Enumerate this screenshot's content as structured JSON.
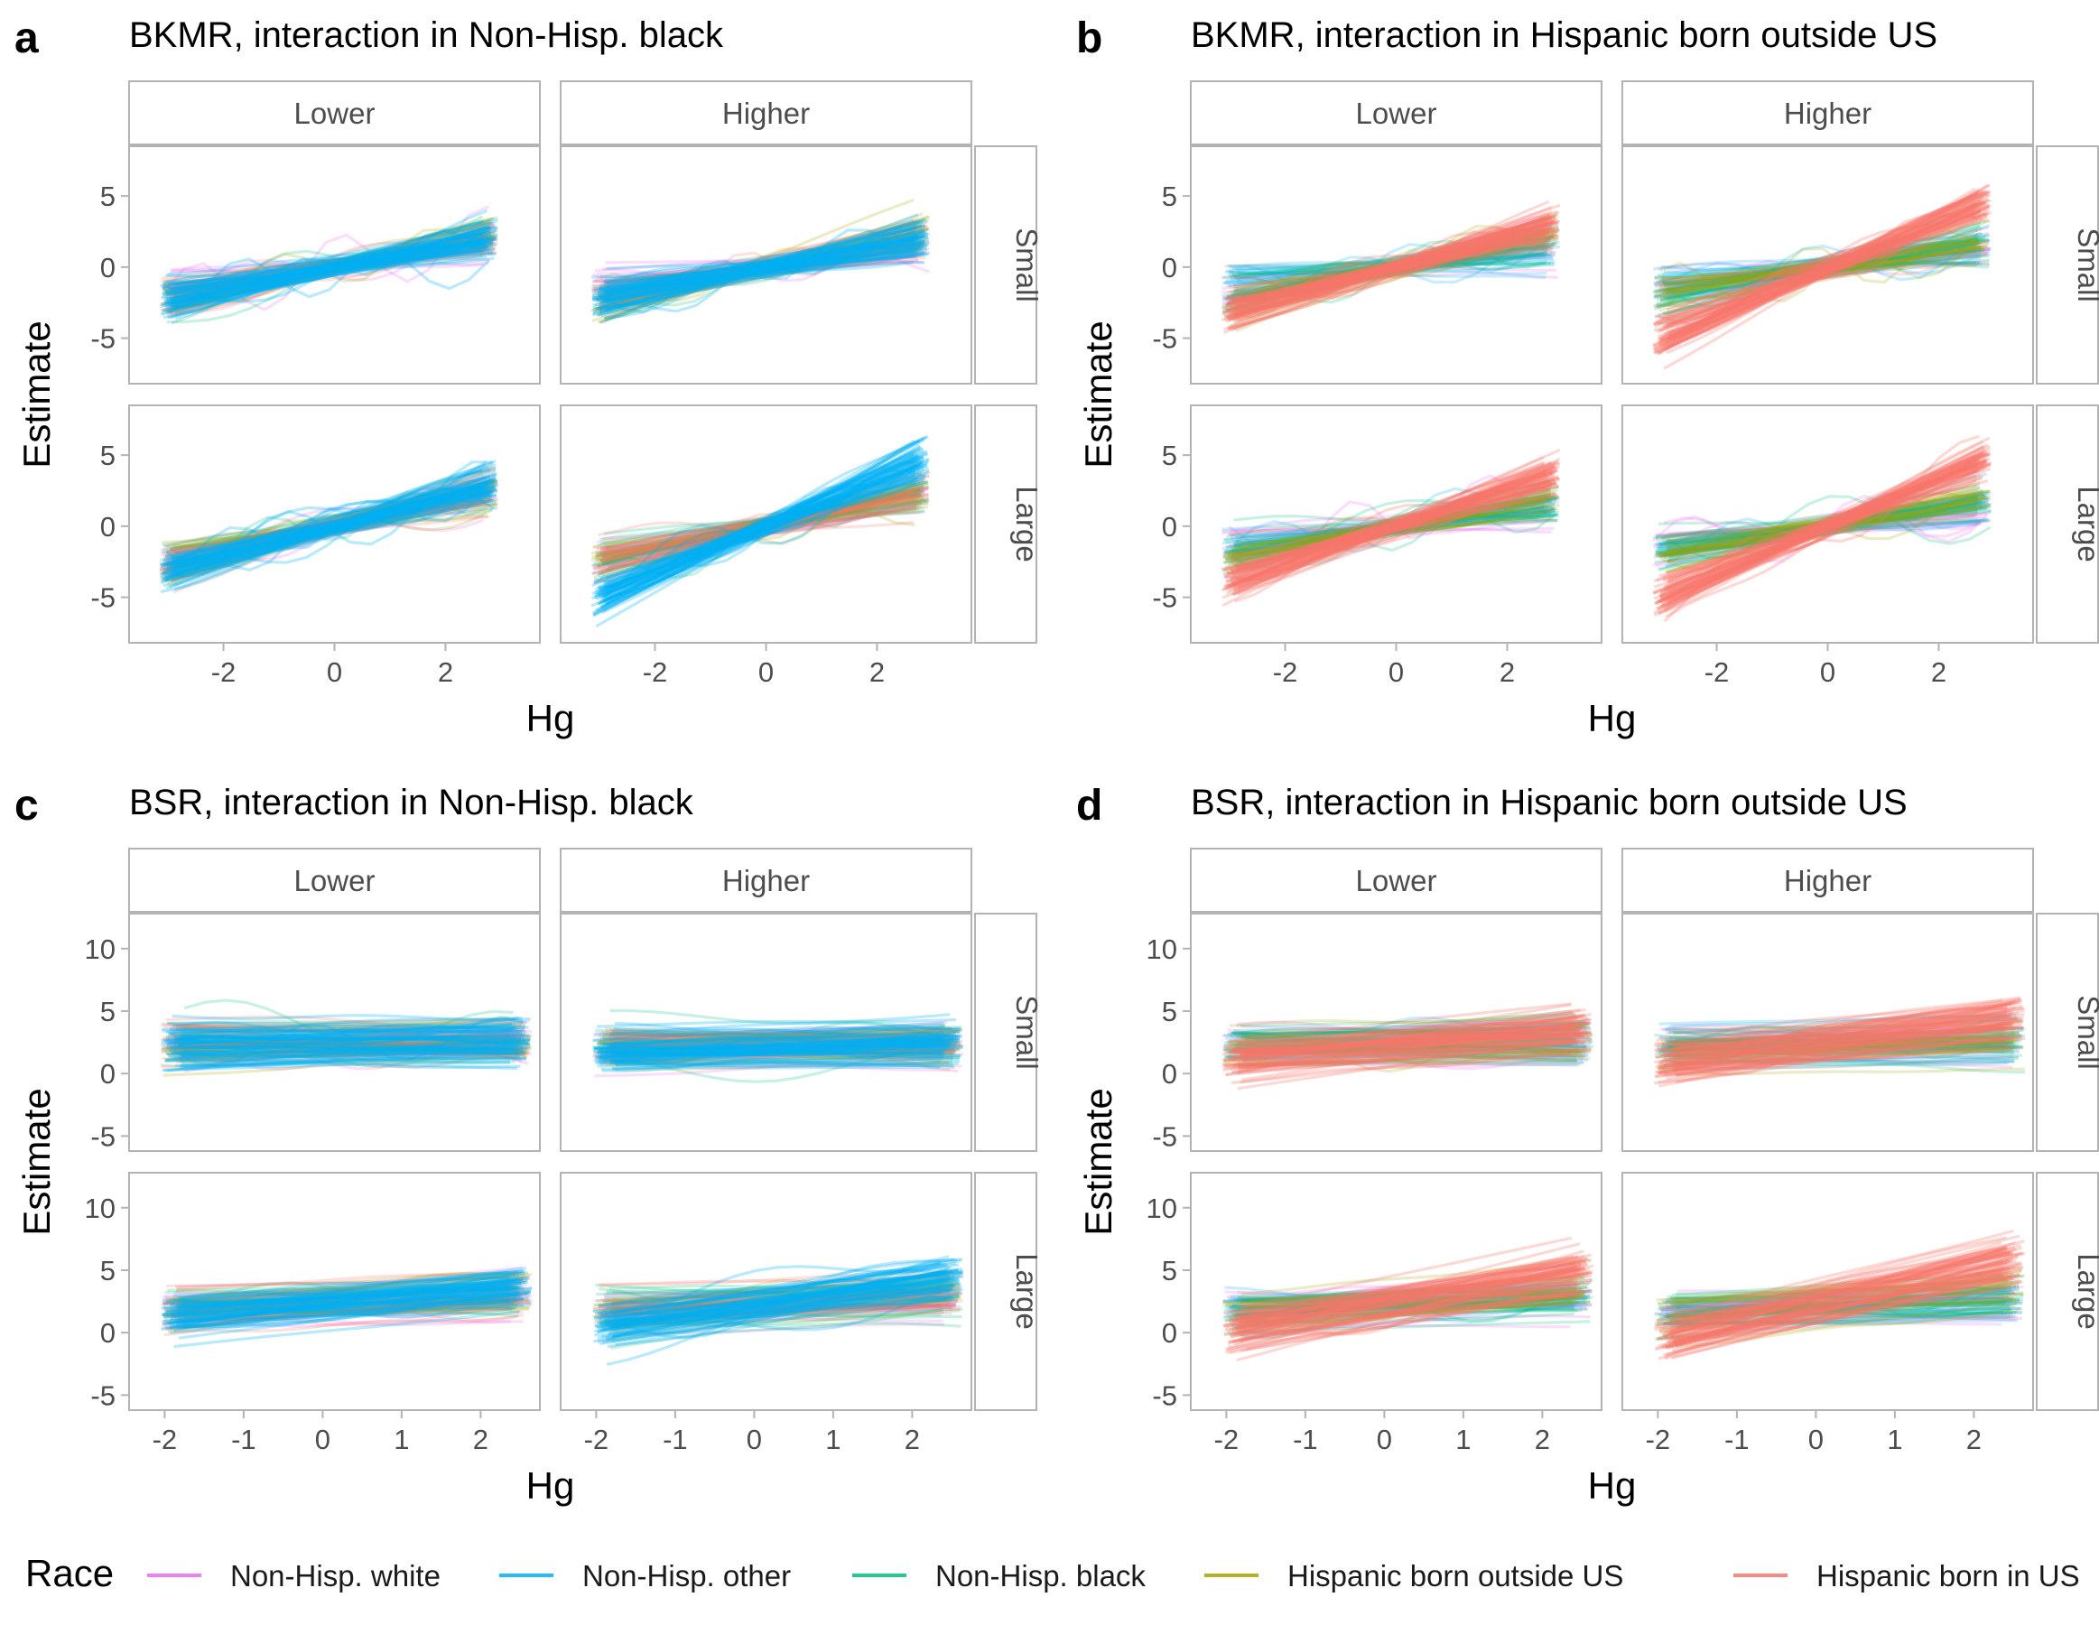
{
  "chart_data": [
    {
      "letter": "a",
      "title": "BKMR, interaction in Non-Hisp. black",
      "type": "line",
      "xlabel": "Hg",
      "ylabel": "Estimate",
      "xlim": [
        -3.7,
        3.7
      ],
      "ylim": [
        -8.2,
        8.5
      ],
      "x_ticks": [
        -2,
        0,
        2
      ],
      "x_tick_labels": [
        "-2",
        "0",
        "2"
      ],
      "y_ticks": [
        -5,
        0,
        5
      ],
      "y_tick_labels": [
        "-5",
        "0",
        "5"
      ],
      "col_strips": [
        "Lower",
        "Higher"
      ],
      "row_strips": [
        "Small",
        "Large"
      ],
      "x_range": [
        -3,
        2.8
      ],
      "panels": {
        "Lower|Small": {
          "non_hisp_white": 0.55,
          "non_hisp_other": 0.7,
          "non_hisp_black": 0.75,
          "hispanic_outside_us": 0.8,
          "hispanic_in_us": 0.7
        },
        "Higher|Small": {
          "non_hisp_white": 0.55,
          "non_hisp_other": 0.75,
          "non_hisp_black": 0.75,
          "hispanic_outside_us": 0.8,
          "hispanic_in_us": 0.7
        },
        "Lower|Large": {
          "non_hisp_white": 0.9,
          "non_hisp_other": 1.0,
          "non_hisp_black": 0.85,
          "hispanic_outside_us": 0.85,
          "hispanic_in_us": 0.9
        },
        "Higher|Large": {
          "non_hisp_white": 0.8,
          "non_hisp_other": 1.6,
          "non_hisp_black": 0.8,
          "hispanic_outside_us": 0.8,
          "hispanic_in_us": 0.8
        }
      },
      "foreground_series": "non_hisp_other"
    },
    {
      "letter": "b",
      "title": "BKMR, interaction in Hispanic born outside US",
      "type": "line",
      "xlabel": "Hg",
      "ylabel": "Estimate",
      "xlim": [
        -3.7,
        3.7
      ],
      "ylim": [
        -8.2,
        8.5
      ],
      "x_ticks": [
        -2,
        0,
        2
      ],
      "x_tick_labels": [
        "-2",
        "0",
        "2"
      ],
      "y_ticks": [
        -5,
        0,
        5
      ],
      "y_tick_labels": [
        "-5",
        "0",
        "5"
      ],
      "col_strips": [
        "Lower",
        "Higher"
      ],
      "row_strips": [
        "Small",
        "Large"
      ],
      "x_range": [
        -3,
        2.8
      ],
      "panels": {
        "Lower|Small": {
          "non_hisp_white": 0.5,
          "non_hisp_other": 0.5,
          "non_hisp_black": 0.6,
          "hispanic_outside_us": 0.9,
          "hispanic_in_us": 1.05
        },
        "Higher|Small": {
          "non_hisp_white": 0.5,
          "non_hisp_other": 0.5,
          "non_hisp_black": 0.6,
          "hispanic_outside_us": 0.6,
          "hispanic_in_us": 1.6
        },
        "Lower|Large": {
          "non_hisp_white": 0.5,
          "non_hisp_other": 0.6,
          "non_hisp_black": 0.6,
          "hispanic_outside_us": 0.7,
          "hispanic_in_us": 1.3
        },
        "Higher|Large": {
          "non_hisp_white": 0.5,
          "non_hisp_other": 0.6,
          "non_hisp_black": 0.6,
          "hispanic_outside_us": 0.7,
          "hispanic_in_us": 1.65
        }
      },
      "foreground_series": "hispanic_in_us"
    },
    {
      "letter": "c",
      "title": "BSR, interaction in Non-Hisp. black",
      "type": "line",
      "xlabel": "Hg",
      "ylabel": "Estimate",
      "xlim": [
        -2.45,
        2.75
      ],
      "ylim": [
        -6.2,
        12.8
      ],
      "x_ticks": [
        -2,
        -1,
        0,
        1,
        2
      ],
      "x_tick_labels": [
        "-2",
        "-1",
        "0",
        "1",
        "2"
      ],
      "y_ticks": [
        -5,
        0,
        5,
        10
      ],
      "y_tick_labels": [
        "-5",
        "0",
        "5",
        "10"
      ],
      "col_strips": [
        "Lower",
        "Higher"
      ],
      "row_strips": [
        "Small",
        "Large"
      ],
      "x_range": [
        -1.9,
        2.5
      ],
      "panels": {
        "Lower|Small": {
          "non_hisp_white": 0.05,
          "non_hisp_other": 0.1,
          "non_hisp_black": 0.05,
          "hispanic_outside_us": 0.1,
          "hispanic_in_us": 0.05
        },
        "Higher|Small": {
          "non_hisp_white": 0.05,
          "non_hisp_other": 0.15,
          "non_hisp_black": 0.05,
          "hispanic_outside_us": 0.1,
          "hispanic_in_us": 0.05
        },
        "Lower|Large": {
          "non_hisp_white": 0.2,
          "non_hisp_other": 0.5,
          "non_hisp_black": 0.2,
          "hispanic_outside_us": 0.4,
          "hispanic_in_us": 0.3
        },
        "Higher|Large": {
          "non_hisp_white": 0.2,
          "non_hisp_other": 0.9,
          "non_hisp_black": 0.2,
          "hispanic_outside_us": 0.5,
          "hispanic_in_us": 0.3
        }
      },
      "foreground_series": "non_hisp_other"
    },
    {
      "letter": "d",
      "title": "BSR, interaction in Hispanic born outside US",
      "type": "line",
      "xlabel": "Hg",
      "ylabel": "Estimate",
      "xlim": [
        -2.45,
        2.75
      ],
      "ylim": [
        -6.2,
        12.8
      ],
      "x_ticks": [
        -2,
        -1,
        0,
        1,
        2
      ],
      "x_tick_labels": [
        "-2",
        "-1",
        "0",
        "1",
        "2"
      ],
      "y_ticks": [
        -5,
        0,
        5,
        10
      ],
      "y_tick_labels": [
        "-5",
        "0",
        "5",
        "10"
      ],
      "col_strips": [
        "Lower",
        "Higher"
      ],
      "row_strips": [
        "Small",
        "Large"
      ],
      "x_range": [
        -1.9,
        2.5
      ],
      "panels": {
        "Lower|Small": {
          "non_hisp_white": 0.05,
          "non_hisp_other": 0.1,
          "non_hisp_black": 0.05,
          "hispanic_outside_us": 0.2,
          "hispanic_in_us": 0.55
        },
        "Higher|Small": {
          "non_hisp_white": 0.05,
          "non_hisp_other": 0.1,
          "non_hisp_black": 0.05,
          "hispanic_outside_us": 0.3,
          "hispanic_in_us": 0.85
        },
        "Lower|Large": {
          "non_hisp_white": 0.2,
          "non_hisp_other": 0.3,
          "non_hisp_black": 0.25,
          "hispanic_outside_us": 0.5,
          "hispanic_in_us": 1.1
        },
        "Higher|Large": {
          "non_hisp_white": 0.2,
          "non_hisp_other": 0.3,
          "non_hisp_black": 0.25,
          "hispanic_outside_us": 0.6,
          "hispanic_in_us": 1.4
        }
      },
      "foreground_series": "hispanic_in_us"
    }
  ],
  "series": [
    {
      "key": "non_hisp_white",
      "name": "Non-Hisp. white",
      "color": "#E76BF3"
    },
    {
      "key": "non_hisp_other",
      "name": "Non-Hisp. other",
      "color": "#00B0F6"
    },
    {
      "key": "non_hisp_black",
      "name": "Non-Hisp. black",
      "color": "#00BF7D"
    },
    {
      "key": "hispanic_outside_us",
      "name": "Hispanic born outside US",
      "color": "#A3A500"
    },
    {
      "key": "hispanic_in_us",
      "name": "Hispanic born in US",
      "color": "#F8766D"
    }
  ],
  "legend": {
    "title": "Race",
    "position": "bottom"
  },
  "colors": {
    "strip_text": "#4d4d4d",
    "tick_text": "#4d4d4d",
    "panel_border": "#b3b3b3",
    "title": "#000000"
  },
  "grid": false
}
